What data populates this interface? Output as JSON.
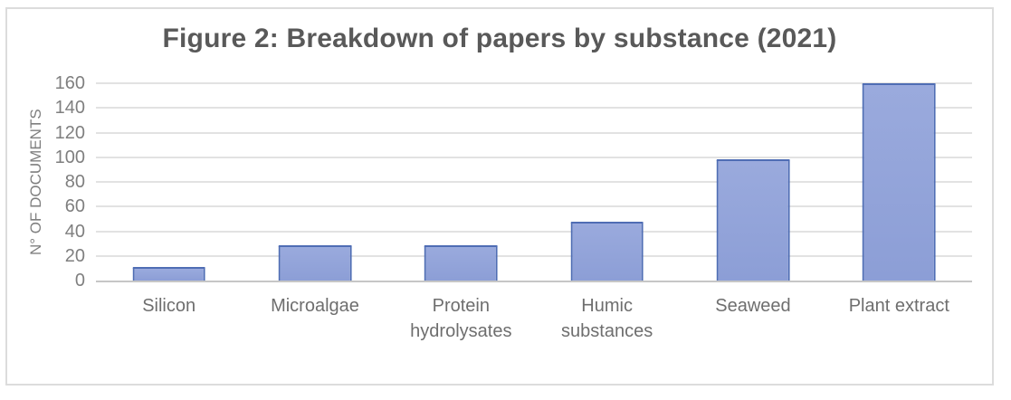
{
  "figure": {
    "title": "Figure 2: Breakdown of papers by substance (2021)"
  },
  "chart_data": {
    "type": "bar",
    "title": "Figure 2: Breakdown of papers by substance (2021)",
    "categories": [
      "Silicon",
      "Microalgae",
      "Protein hydrolysates",
      "Humic substances",
      "Seaweed",
      "Plant extract"
    ],
    "values": [
      11,
      29,
      29,
      48,
      98,
      160
    ],
    "xlabel": "",
    "ylabel": "N° OF DOCUMENTS",
    "ylim": [
      0,
      160
    ],
    "yticks": [
      0,
      20,
      40,
      60,
      80,
      100,
      120,
      140,
      160
    ],
    "grid": true,
    "legend": false,
    "bar_width_ratio": 0.5
  },
  "colors": {
    "title_text": "#595959",
    "axis_text": "#7F7F7F",
    "category_text": "#6E6E6E",
    "gridline": "#E2E2E2",
    "axis_line": "#C6C6C6",
    "frame_border": "#DCDCDC",
    "bar_fill_top": "#9AAADD",
    "bar_fill_bottom": "#8C9ED6",
    "bar_border": "#4F6DB4",
    "background": "#FFFFFF"
  }
}
